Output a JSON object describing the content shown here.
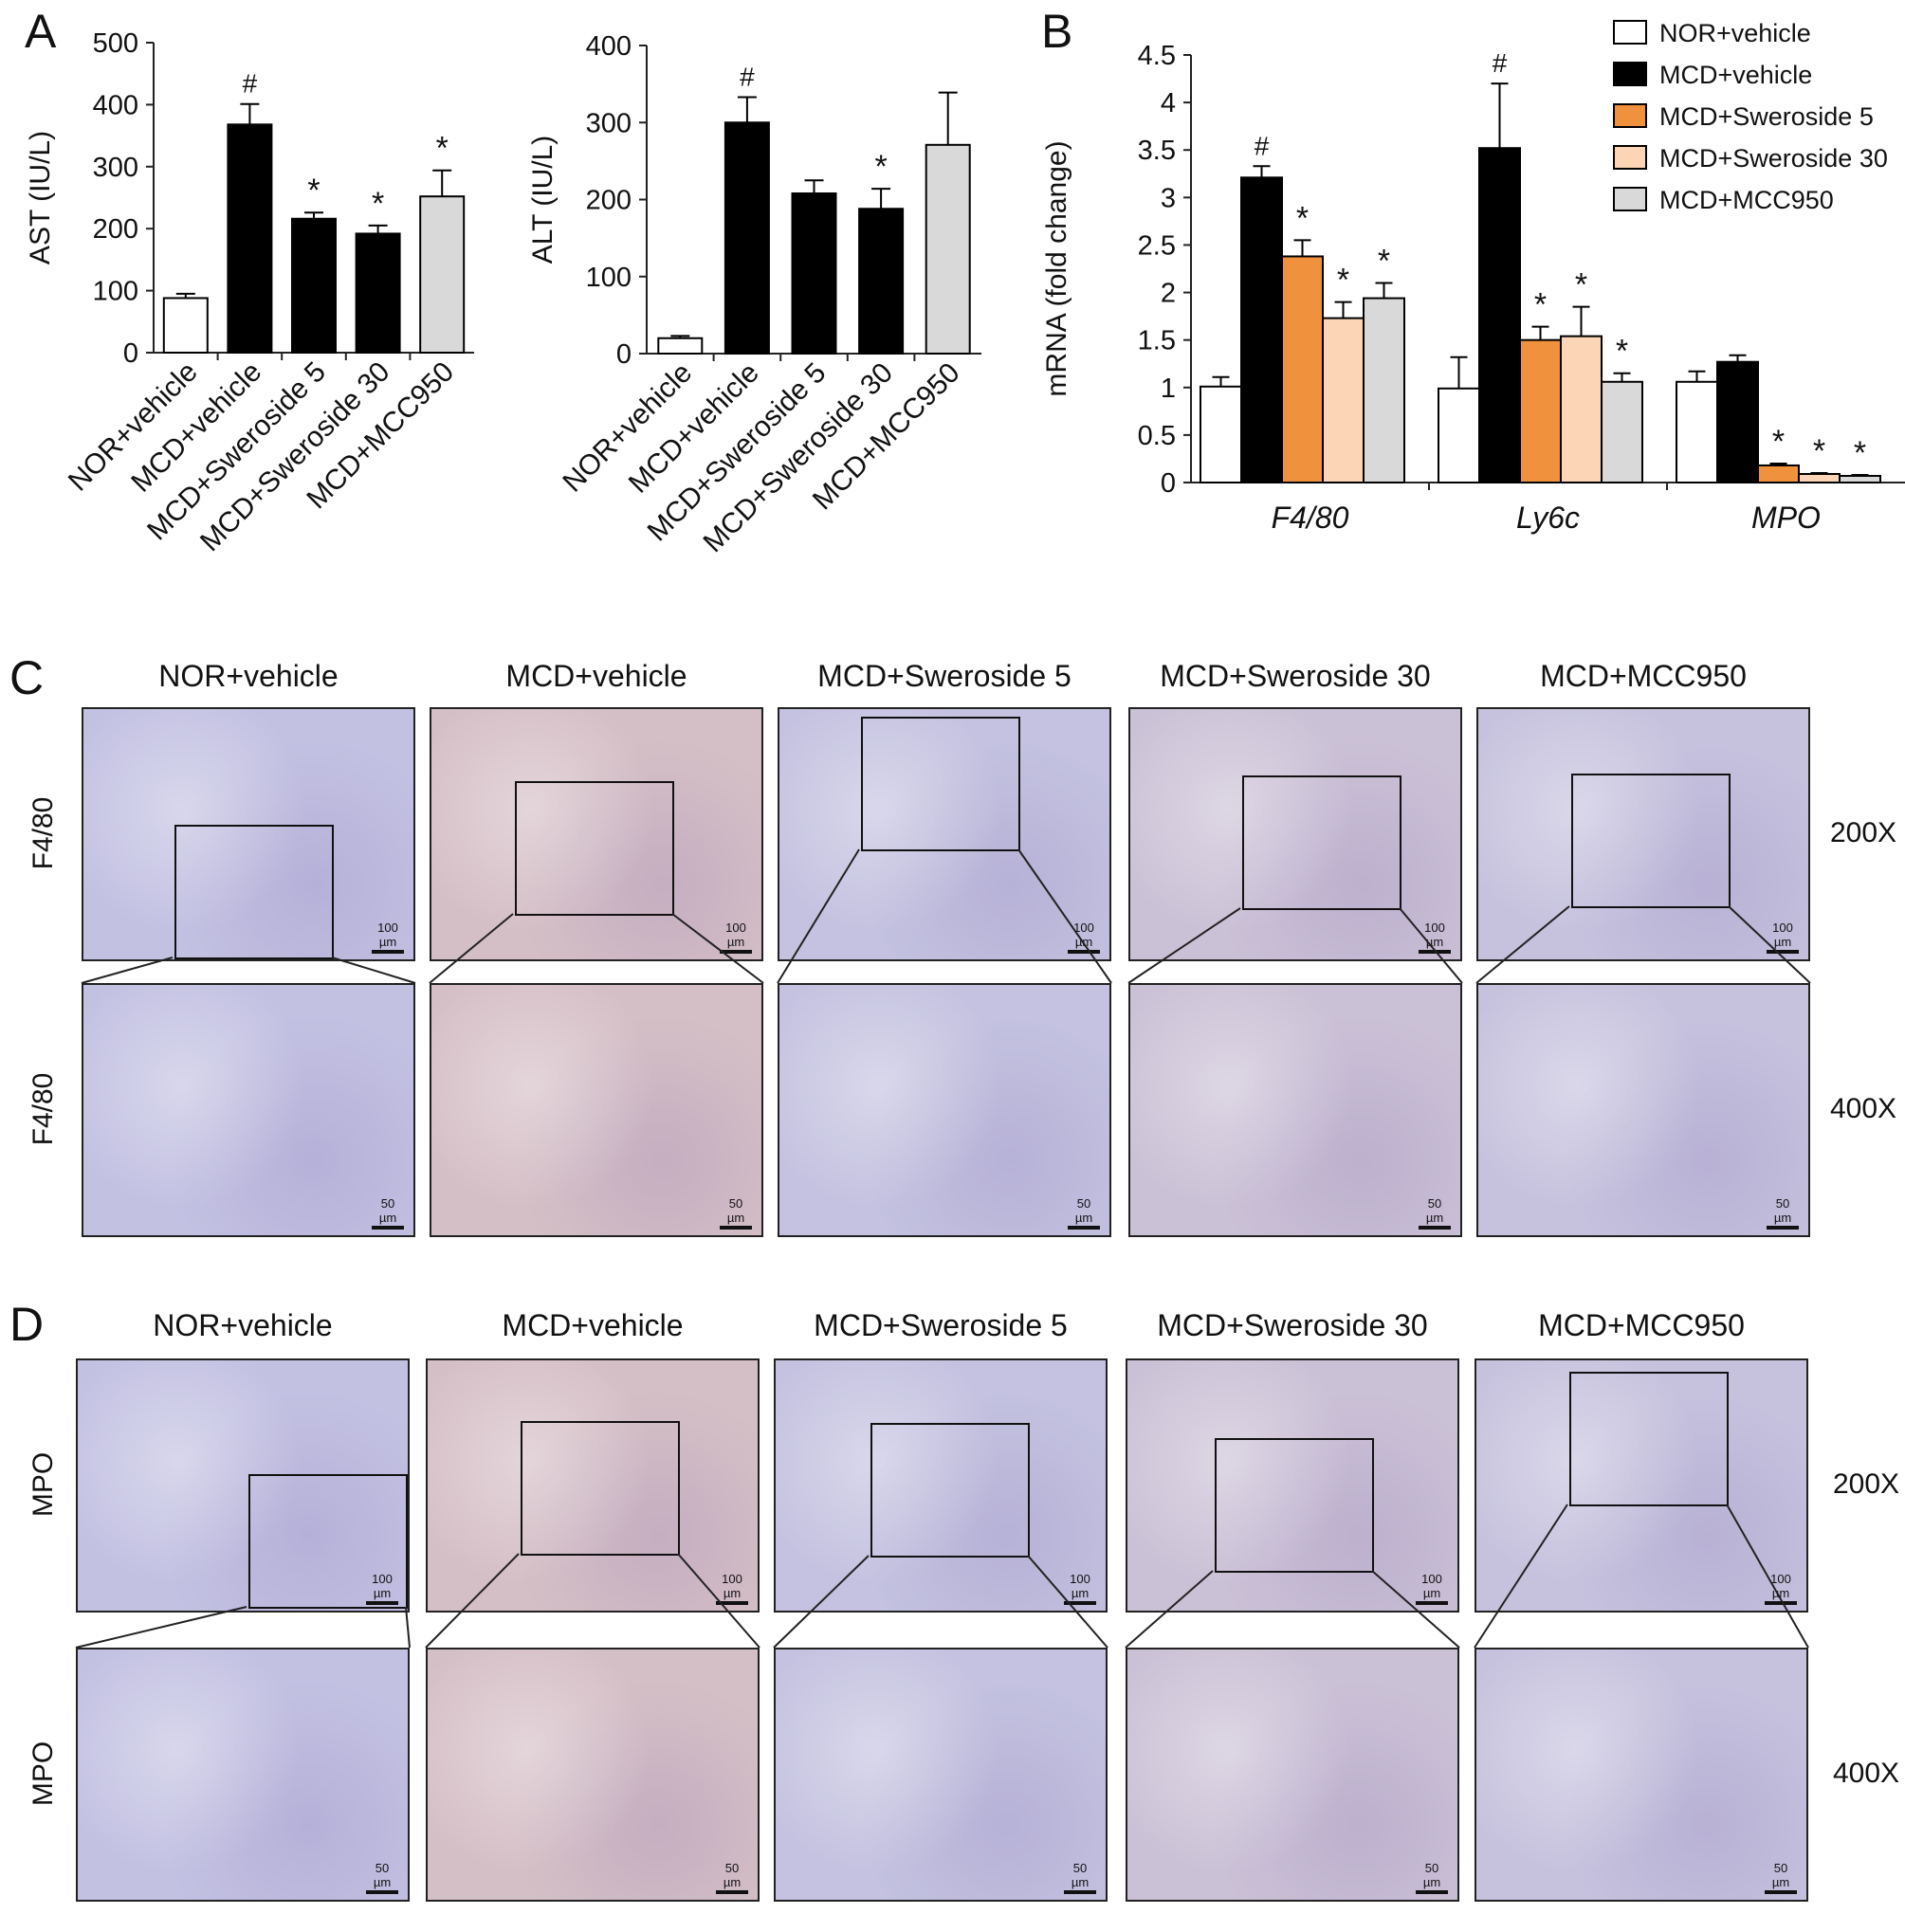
{
  "panels": {
    "a": "A",
    "b": "B",
    "c": "C",
    "d": "D"
  },
  "chart_data": [
    {
      "type": "bar",
      "ylabel": "AST (IU/L)",
      "ylim": [
        0,
        500
      ],
      "yticks": [
        0,
        100,
        200,
        300,
        400,
        500
      ],
      "categories": [
        "NOR+vehicle",
        "MCD+vehicle",
        "MCD+Sweroside 5",
        "MCD+Sweroside 30",
        "MCD+MCC950"
      ],
      "values": [
        88,
        368,
        216,
        192,
        252
      ],
      "errors": [
        7,
        33,
        10,
        13,
        42
      ],
      "colors": [
        "#ffffff",
        "#000000",
        "#000000",
        "#000000",
        "#d9d9d9"
      ],
      "annotations": [
        "",
        "#",
        "*",
        "*",
        "*"
      ]
    },
    {
      "type": "bar",
      "ylabel": "ALT (IU/L)",
      "ylim": [
        0,
        400
      ],
      "yticks": [
        0,
        100,
        200,
        300,
        400
      ],
      "categories": [
        "NOR+vehicle",
        "MCD+vehicle",
        "MCD+Sweroside 5",
        "MCD+Sweroside 30",
        "MCD+MCC950"
      ],
      "values": [
        20,
        300,
        208,
        188,
        271
      ],
      "errors": [
        3,
        33,
        17,
        26,
        68
      ],
      "colors": [
        "#ffffff",
        "#000000",
        "#000000",
        "#000000",
        "#d9d9d9"
      ],
      "annotations": [
        "",
        "#",
        "",
        "*",
        ""
      ]
    },
    {
      "type": "bar",
      "ylabel": "mRNA (fold change)",
      "ylim": [
        0,
        4.5
      ],
      "yticks": [
        "0",
        "0.5",
        "1",
        "1.5",
        "2",
        "2.5",
        "3",
        "3.5",
        "4",
        "4.5"
      ],
      "categories": [
        "F4/80",
        "Ly6c",
        "MPO"
      ],
      "series": [
        {
          "name": "NOR+vehicle",
          "color": "#ffffff",
          "values": [
            1.01,
            0.99,
            1.06
          ],
          "errors": [
            0.1,
            0.33,
            0.11
          ],
          "annotations": [
            "",
            "",
            ""
          ]
        },
        {
          "name": "MCD+vehicle",
          "color": "#000000",
          "values": [
            3.21,
            3.52,
            1.27
          ],
          "errors": [
            0.12,
            0.68,
            0.07
          ],
          "annotations": [
            "#",
            "#",
            ""
          ]
        },
        {
          "name": "MCD+Sweroside 5",
          "color": "#f0913e",
          "values": [
            2.38,
            1.5,
            0.18
          ],
          "errors": [
            0.17,
            0.14,
            0.02
          ],
          "annotations": [
            "*",
            "*",
            "*"
          ]
        },
        {
          "name": "MCD+Sweroside 30",
          "color": "#fbd5b5",
          "values": [
            1.73,
            1.54,
            0.09
          ],
          "errors": [
            0.17,
            0.31,
            0.01
          ],
          "annotations": [
            "*",
            "*",
            "*"
          ]
        },
        {
          "name": "MCD+MCC950",
          "color": "#d9d9d9",
          "values": [
            1.94,
            1.06,
            0.07
          ],
          "errors": [
            0.16,
            0.09,
            0.01
          ],
          "annotations": [
            "*",
            "*",
            "*"
          ]
        }
      ],
      "legend": "top-right"
    }
  ],
  "micrographs": {
    "columns": [
      "NOR+vehicle",
      "MCD+vehicle",
      "MCD+Sweroside 5",
      "MCD+Sweroside 30",
      "MCD+MCC950"
    ],
    "panel_c": {
      "stain": "F4/80",
      "rows": [
        "200X",
        "400X"
      ]
    },
    "panel_d": {
      "stain": "MPO",
      "rows": [
        "200X",
        "400X"
      ]
    },
    "scale_200x": "100 µm",
    "scale_400x": "50 µm",
    "tints": [
      "#c3c1e2",
      "#d5bfc6",
      "#c4c2e0",
      "#cbc1d6",
      "#c6c2de"
    ]
  }
}
